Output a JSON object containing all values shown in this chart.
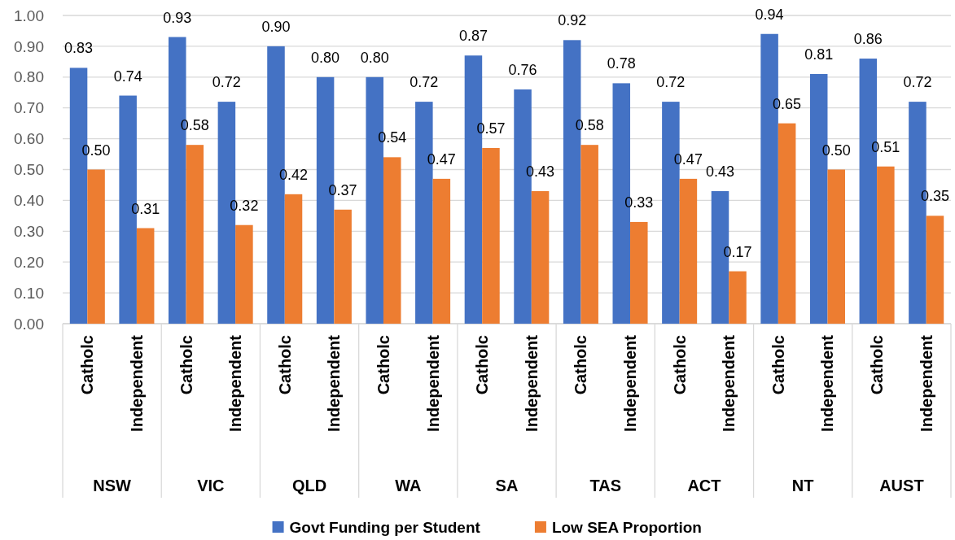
{
  "chart_data": {
    "type": "bar",
    "categories": [
      "Catholc",
      "Independent",
      "Catholc",
      "Independent",
      "Catholc",
      "Independent",
      "Catholc",
      "Independent",
      "Catholc",
      "Independent",
      "Catholc",
      "Independent",
      "Catholc",
      "Independent",
      "Catholc",
      "Independent",
      "Catholc",
      "Independent"
    ],
    "series": [
      {
        "name": "Govt Funding per Student",
        "color": "#4472c4",
        "values": [
          0.83,
          0.74,
          0.93,
          0.72,
          0.9,
          0.8,
          0.8,
          0.72,
          0.87,
          0.76,
          0.92,
          0.78,
          0.72,
          0.43,
          0.94,
          0.81,
          0.86,
          0.72
        ],
        "value_labels": [
          "0.83",
          "0.74",
          "0.93",
          "0.72",
          "0.90",
          "0.80",
          "0.80",
          "0.72",
          "0.87",
          "0.76",
          "0.92",
          "0.78",
          "0.72",
          "0.43",
          "0.94",
          "0.81",
          "0.86",
          "0.72"
        ]
      },
      {
        "name": "Low SEA Proportion",
        "color": "#ed7d31",
        "values": [
          0.5,
          0.31,
          0.58,
          0.32,
          0.42,
          0.37,
          0.54,
          0.47,
          0.57,
          0.43,
          0.58,
          0.33,
          0.47,
          0.17,
          0.65,
          0.5,
          0.51,
          0.35
        ],
        "value_labels": [
          "0.50",
          "0.31",
          "0.58",
          "0.32",
          "0.42",
          "0.37",
          "0.54",
          "0.47",
          "0.57",
          "0.43",
          "0.58",
          "0.33",
          "0.47",
          "0.17",
          "0.65",
          "0.50",
          "0.51",
          "0.35"
        ]
      }
    ],
    "ylim": [
      0,
      1
    ],
    "yticks": [
      {
        "value": 0,
        "label": "0.00"
      },
      {
        "value": 0.1,
        "label": "0.10"
      },
      {
        "value": 0.2,
        "label": "0.20"
      },
      {
        "value": 0.3,
        "label": "0.30"
      },
      {
        "value": 0.4,
        "label": "0.40"
      },
      {
        "value": 0.5,
        "label": "0.50"
      },
      {
        "value": 0.6,
        "label": "0.60"
      },
      {
        "value": 0.7,
        "label": "0.70"
      },
      {
        "value": 0.8,
        "label": "0.80"
      },
      {
        "value": 0.9,
        "label": "0.90"
      },
      {
        "value": 1,
        "label": "1.00"
      }
    ],
    "grid": "y",
    "legend": "bottom",
    "annotations": [
      "NSW",
      "VIC",
      "QLD",
      "WA",
      "SA",
      "TAS",
      "ACT",
      "NT",
      "AUST"
    ]
  }
}
